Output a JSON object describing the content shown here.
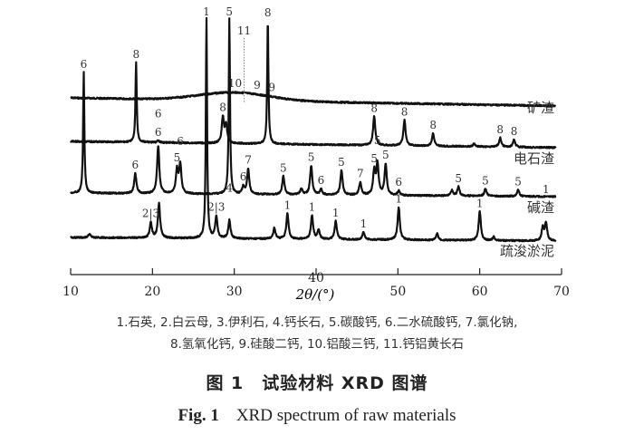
{
  "chart_data": {
    "type": "line",
    "title": "",
    "xlabel": "2θ/(°)",
    "ylabel": "",
    "xlim": [
      10,
      70
    ],
    "xticks": [
      "10",
      "20",
      "30",
      "40",
      "50",
      "60",
      "70"
    ],
    "grid": false,
    "series": [
      {
        "name": "矿渣",
        "hump": {
          "center": 30,
          "height": 9,
          "width": 6
        },
        "peaks": [],
        "annotations": [
          {
            "x": 30.1,
            "text": "10"
          },
          {
            "x": 32.8,
            "text": "9"
          },
          {
            "x": 34.6,
            "text": "9"
          }
        ],
        "reference_line": {
          "x": 31.2,
          "text": "11"
        }
      },
      {
        "name": "电石渣",
        "peaks": [
          [
            18.0,
            88,
            "8"
          ],
          [
            20.7,
            2,
            "6"
          ],
          [
            28.6,
            28,
            "8"
          ],
          [
            29.0,
            20,
            ""
          ],
          [
            34.1,
            136,
            "8"
          ],
          [
            47.1,
            32,
            "8"
          ],
          [
            50.8,
            28,
            "8"
          ],
          [
            54.3,
            14,
            "8"
          ],
          [
            59.3,
            3,
            ""
          ],
          [
            62.5,
            10,
            "8"
          ],
          [
            64.2,
            8,
            "8"
          ]
        ]
      },
      {
        "name": "碱渣",
        "peaks": [
          [
            11.6,
            133,
            "6"
          ],
          [
            17.9,
            22,
            "6"
          ],
          [
            20.7,
            53,
            "6"
          ],
          [
            23.0,
            26,
            "5"
          ],
          [
            23.4,
            32,
            "6"
          ],
          [
            29.4,
            193,
            "5"
          ],
          [
            31.1,
            8,
            "6"
          ],
          [
            31.7,
            28,
            "7"
          ],
          [
            36.0,
            20,
            "5"
          ],
          [
            38.2,
            6,
            ""
          ],
          [
            39.4,
            32,
            "5"
          ],
          [
            40.6,
            6,
            "6"
          ],
          [
            43.1,
            27,
            "5"
          ],
          [
            45.4,
            14,
            "7"
          ],
          [
            47.1,
            26,
            "5"
          ],
          [
            47.5,
            34,
            "5"
          ],
          [
            48.5,
            34,
            "5"
          ],
          [
            50.1,
            5,
            "6"
          ],
          [
            56.6,
            6,
            ""
          ],
          [
            57.4,
            10,
            "5"
          ],
          [
            60.7,
            8,
            "5"
          ],
          [
            64.7,
            7,
            "5"
          ]
        ]
      },
      {
        "name": "疏浚淤泥",
        "peaks": [
          [
            12.3,
            4,
            ""
          ],
          [
            19.8,
            17,
            "2|3"
          ],
          [
            20.8,
            38,
            ""
          ],
          [
            26.6,
            242,
            "1"
          ],
          [
            27.8,
            24,
            "2|3"
          ],
          [
            29.4,
            20,
            "4"
          ],
          [
            34.9,
            12,
            ""
          ],
          [
            36.5,
            28,
            "1"
          ],
          [
            39.5,
            26,
            "1"
          ],
          [
            40.3,
            10,
            ""
          ],
          [
            42.4,
            20,
            "1"
          ],
          [
            45.8,
            8,
            "1"
          ],
          [
            50.1,
            36,
            "1"
          ],
          [
            54.8,
            7,
            ""
          ],
          [
            60.0,
            32,
            "1"
          ],
          [
            61.7,
            4,
            ""
          ],
          [
            67.7,
            14,
            ""
          ],
          [
            68.1,
            20,
            "1"
          ]
        ]
      }
    ]
  },
  "legend": {
    "line1": "1.石英, 2.白云母, 3.伊利石, 4.钙长石, 5.碳酸钙, 6.二水硫酸钙, 7.氯化钠,",
    "line2": "8.氢氧化钙, 9.硅酸二钙, 10.铝酸三钙, 11.钙铝黄长石"
  },
  "caption": {
    "cn": "图 1　试验材料 XRD 图谱",
    "en_prefix": "Fig. 1",
    "en": "XRD spectrum of raw materials"
  }
}
